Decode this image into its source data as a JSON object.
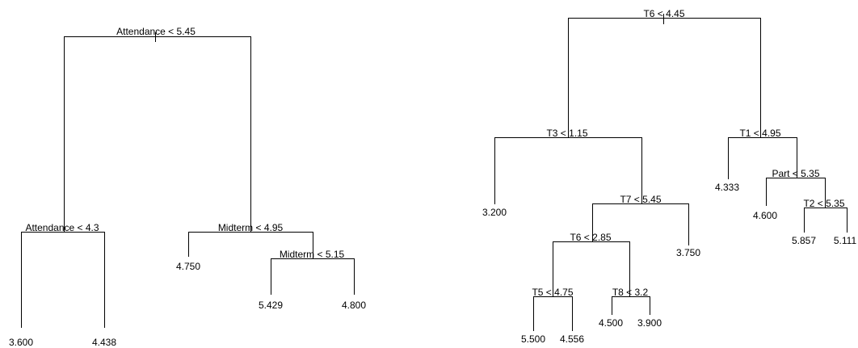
{
  "trees": [
    {
      "id": "tree-1",
      "splits": [
        {
          "id": "t1-root",
          "label": "Attendance < 5.45"
        },
        {
          "id": "t1-left",
          "label": "Attendance < 4.3"
        },
        {
          "id": "t1-right",
          "label": "Midterm < 4.95"
        },
        {
          "id": "t1-right-right",
          "label": "Midterm < 5.15"
        }
      ],
      "leaves": [
        {
          "id": "t1-leaf-1",
          "value": "3.600"
        },
        {
          "id": "t1-leaf-2",
          "value": "4.438"
        },
        {
          "id": "t1-leaf-3",
          "value": "4.750"
        },
        {
          "id": "t1-leaf-4",
          "value": "5.429"
        },
        {
          "id": "t1-leaf-5",
          "value": "4.800"
        }
      ]
    },
    {
      "id": "tree-2",
      "splits": [
        {
          "id": "t2-root",
          "label": "T6 < 4.45"
        },
        {
          "id": "t2-left",
          "label": "T3 < 1.15"
        },
        {
          "id": "t2-right",
          "label": "T1 < 4.95"
        },
        {
          "id": "t2-lr",
          "label": "T7 < 5.45"
        },
        {
          "id": "t2-lrl",
          "label": "T6 < 2.85"
        },
        {
          "id": "t2-lrll",
          "label": "T5 < 4.75"
        },
        {
          "id": "t2-lrlr",
          "label": "T8 < 3.2"
        },
        {
          "id": "t2-rr",
          "label": "Part < 5.35"
        },
        {
          "id": "t2-rrr",
          "label": "T2 < 5.35"
        }
      ],
      "leaves": [
        {
          "id": "t2-leaf-1",
          "value": "3.200"
        },
        {
          "id": "t2-leaf-2",
          "value": "3.750"
        },
        {
          "id": "t2-leaf-3",
          "value": "5.500"
        },
        {
          "id": "t2-leaf-4",
          "value": "4.556"
        },
        {
          "id": "t2-leaf-5",
          "value": "4.500"
        },
        {
          "id": "t2-leaf-6",
          "value": "3.900"
        },
        {
          "id": "t2-leaf-7",
          "value": "4.333"
        },
        {
          "id": "t2-leaf-8",
          "value": "4.600"
        },
        {
          "id": "t2-leaf-9",
          "value": "5.857"
        },
        {
          "id": "t2-leaf-10",
          "value": "5.111"
        }
      ]
    }
  ]
}
